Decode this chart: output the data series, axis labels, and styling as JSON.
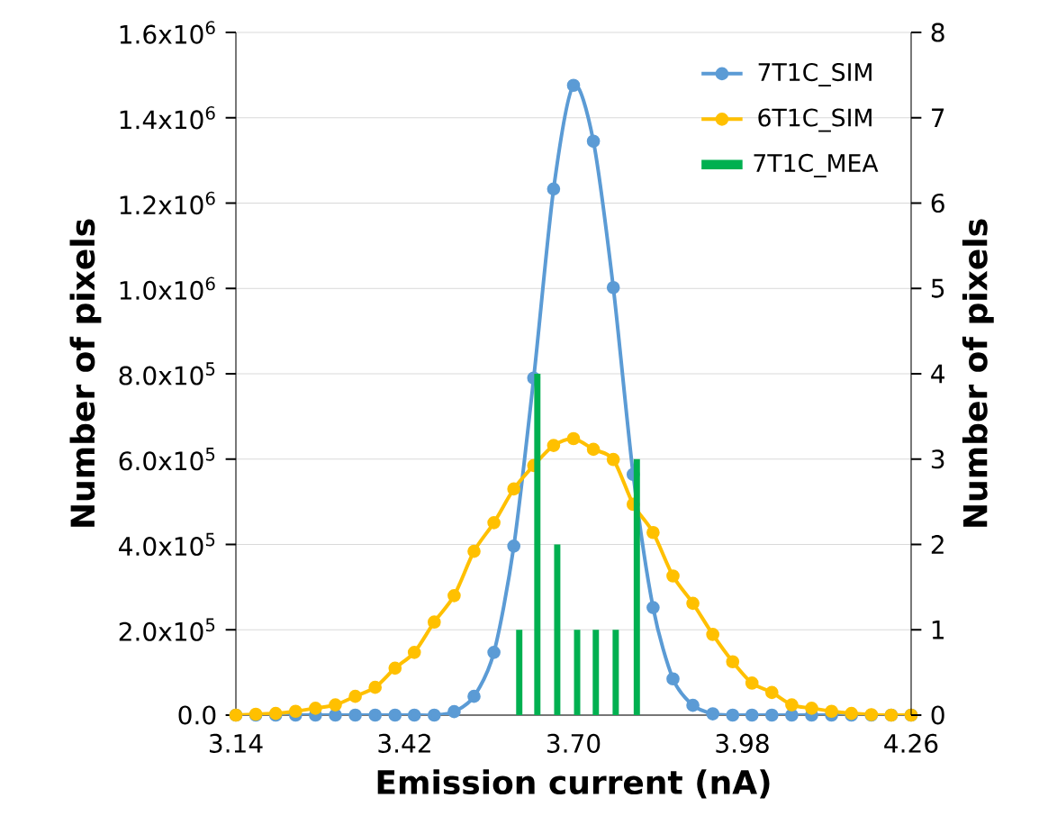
{
  "chart_data": {
    "type": "line",
    "xlabel": "Emission current (nA)",
    "ylabel": "Number of pixels",
    "y2label": "Number of pixels",
    "x": [
      3.14,
      3.173,
      3.206,
      3.239,
      3.272,
      3.305,
      3.338,
      3.371,
      3.404,
      3.436,
      3.469,
      3.502,
      3.535,
      3.568,
      3.601,
      3.634,
      3.667,
      3.7,
      3.733,
      3.766,
      3.799,
      3.832,
      3.865,
      3.898,
      3.931,
      3.964,
      3.996,
      4.029,
      4.062,
      4.095,
      4.128,
      4.161,
      4.194,
      4.227,
      4.26
    ],
    "series": [
      {
        "name": "7T1C_SIM",
        "color": "#5b9bd5",
        "values": [
          0,
          0,
          0,
          0,
          0,
          0,
          0,
          0,
          0,
          0,
          0,
          8000,
          44000,
          147000,
          396000,
          790000,
          1233000,
          1476000,
          1345000,
          1002000,
          564000,
          252000,
          85000,
          23000,
          3000,
          0,
          0,
          0,
          0,
          0,
          0,
          0,
          0,
          0,
          0
        ]
      },
      {
        "name": "6T1C_SIM",
        "color": "#ffc000",
        "values": [
          0,
          2000,
          4000,
          9000,
          16000,
          24000,
          44000,
          65000,
          110000,
          147000,
          218000,
          280000,
          384000,
          451000,
          530000,
          585000,
          632000,
          648000,
          623000,
          599000,
          494000,
          428000,
          326000,
          262000,
          189000,
          125000,
          75000,
          53000,
          24000,
          16000,
          9000,
          4000,
          1000,
          0,
          0
        ]
      },
      {
        "name": "7T1C_MEA",
        "type": "bar",
        "axis": "y2",
        "color": "#00b050",
        "x": [
          3.61,
          3.64,
          3.673,
          3.706,
          3.737,
          3.77,
          3.805
        ],
        "values": [
          1,
          4,
          2,
          1,
          1,
          1,
          3
        ]
      }
    ],
    "xlim": [
      3.14,
      4.26
    ],
    "xticks": [
      3.14,
      3.42,
      {
        "value": 3.7,
        "label": "3.70"
      },
      3.98,
      4.26
    ],
    "ylim": [
      0,
      1600000
    ],
    "yticks": [
      {
        "value": 0,
        "label": "0.0"
      },
      {
        "value": 200000,
        "label": "2.0x10$^{5}$"
      },
      {
        "value": 400000,
        "label": "4.0x10$^{5}$"
      },
      {
        "value": 600000,
        "label": "6.0x10$^{5}$"
      },
      {
        "value": 800000,
        "label": "8.0x10$^{5}$"
      },
      {
        "value": 1000000,
        "label": "1.0x10$^{6}$"
      },
      {
        "value": 1200000,
        "label": "1.2x10$^{6}$"
      },
      {
        "value": 1400000,
        "label": "1.4x10$^{6}$"
      },
      {
        "value": 1600000,
        "label": "1.6x10$^{6}$"
      }
    ],
    "y2lim": [
      0,
      8
    ],
    "y2ticks": [
      0,
      1,
      2,
      3,
      4,
      5,
      6,
      7,
      8
    ],
    "grid": "y",
    "legend": "top right",
    "marker": "circle",
    "line_style": "solid"
  }
}
